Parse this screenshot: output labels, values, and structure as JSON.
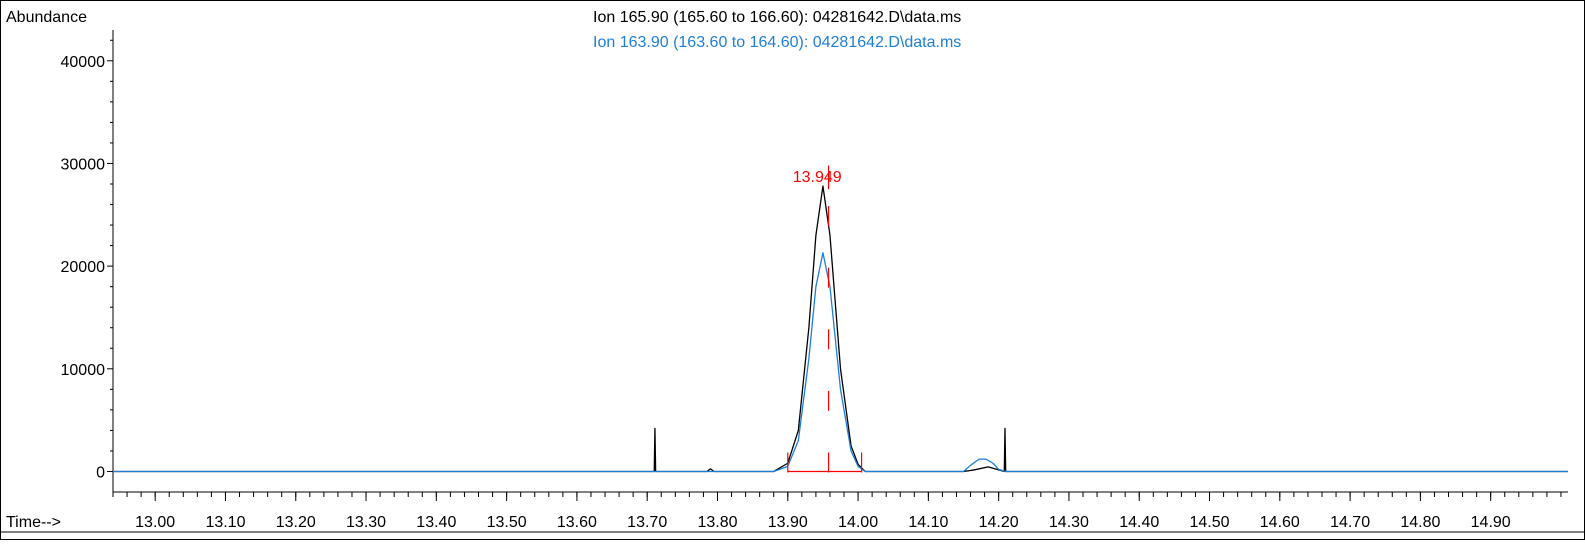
{
  "header": {
    "ylabel": "Abundance",
    "xlabel": "Time-->",
    "ion1_title": "Ion 165.90 (165.60 to 166.60): 04281642.D\\data.ms",
    "ion2_title": "Ion 163.90 (163.60 to 164.60): 04281642.D\\data.ms",
    "peak_label": "13.949"
  },
  "colors": {
    "ion1": "#000000",
    "ion2": "#1e7fd6",
    "integration": "#ff0000"
  },
  "chart_data": {
    "type": "line",
    "title": "",
    "xlabel": "Time-->",
    "ylabel": "Abundance",
    "xlim": [
      12.94,
      15.01
    ],
    "ylim": [
      -2000,
      43000
    ],
    "x_ticks": [
      "13.00",
      "13.10",
      "13.20",
      "13.30",
      "13.40",
      "13.50",
      "13.60",
      "13.70",
      "13.80",
      "13.90",
      "14.00",
      "14.10",
      "14.20",
      "14.30",
      "14.40",
      "14.50",
      "14.60",
      "14.70",
      "14.80",
      "14.90"
    ],
    "y_ticks": [
      "0",
      "10000",
      "20000",
      "30000",
      "40000"
    ],
    "series": [
      {
        "name": "Ion 165.90 (165.60 to 166.60): 04281642.D\\data.ms",
        "color": "#000000",
        "x": [
          12.94,
          13.7,
          13.71,
          13.711,
          13.712,
          13.713,
          13.72,
          13.785,
          13.79,
          13.795,
          13.88,
          13.9,
          13.915,
          13.93,
          13.94,
          13.95,
          13.96,
          13.975,
          13.99,
          14.0,
          14.01,
          14.15,
          14.165,
          14.185,
          14.2,
          14.208,
          14.209,
          14.21,
          14.22,
          15.01
        ],
        "values": [
          0,
          0,
          0,
          4200,
          0,
          0,
          0,
          0,
          250,
          0,
          0,
          800,
          4000,
          14000,
          23000,
          27800,
          23000,
          10000,
          2500,
          700,
          0,
          0,
          150,
          450,
          150,
          0,
          4200,
          0,
          0,
          0
        ]
      },
      {
        "name": "Ion 163.90 (163.60 to 164.60): 04281642.D\\data.ms",
        "color": "#1e7fd6",
        "x": [
          12.94,
          13.88,
          13.9,
          13.915,
          13.93,
          13.94,
          13.95,
          13.96,
          13.975,
          13.99,
          14.0,
          14.01,
          14.15,
          14.16,
          14.172,
          14.182,
          14.192,
          14.2,
          14.21,
          15.01
        ],
        "values": [
          0,
          0,
          500,
          3000,
          11000,
          18000,
          21300,
          18000,
          8000,
          2000,
          500,
          0,
          0,
          600,
          1200,
          1200,
          800,
          200,
          0,
          0
        ]
      }
    ],
    "annotations": [
      {
        "text": "13.949",
        "x": 13.949,
        "y": 28500,
        "color": "#ff0000"
      }
    ],
    "integration_marks": {
      "baseline": [
        13.9,
        14.005
      ],
      "start_x": 13.9,
      "end_x": 14.005,
      "apex_x": 13.958,
      "dash_levels": [
        0,
        6000,
        12000,
        18000,
        24000
      ]
    }
  }
}
